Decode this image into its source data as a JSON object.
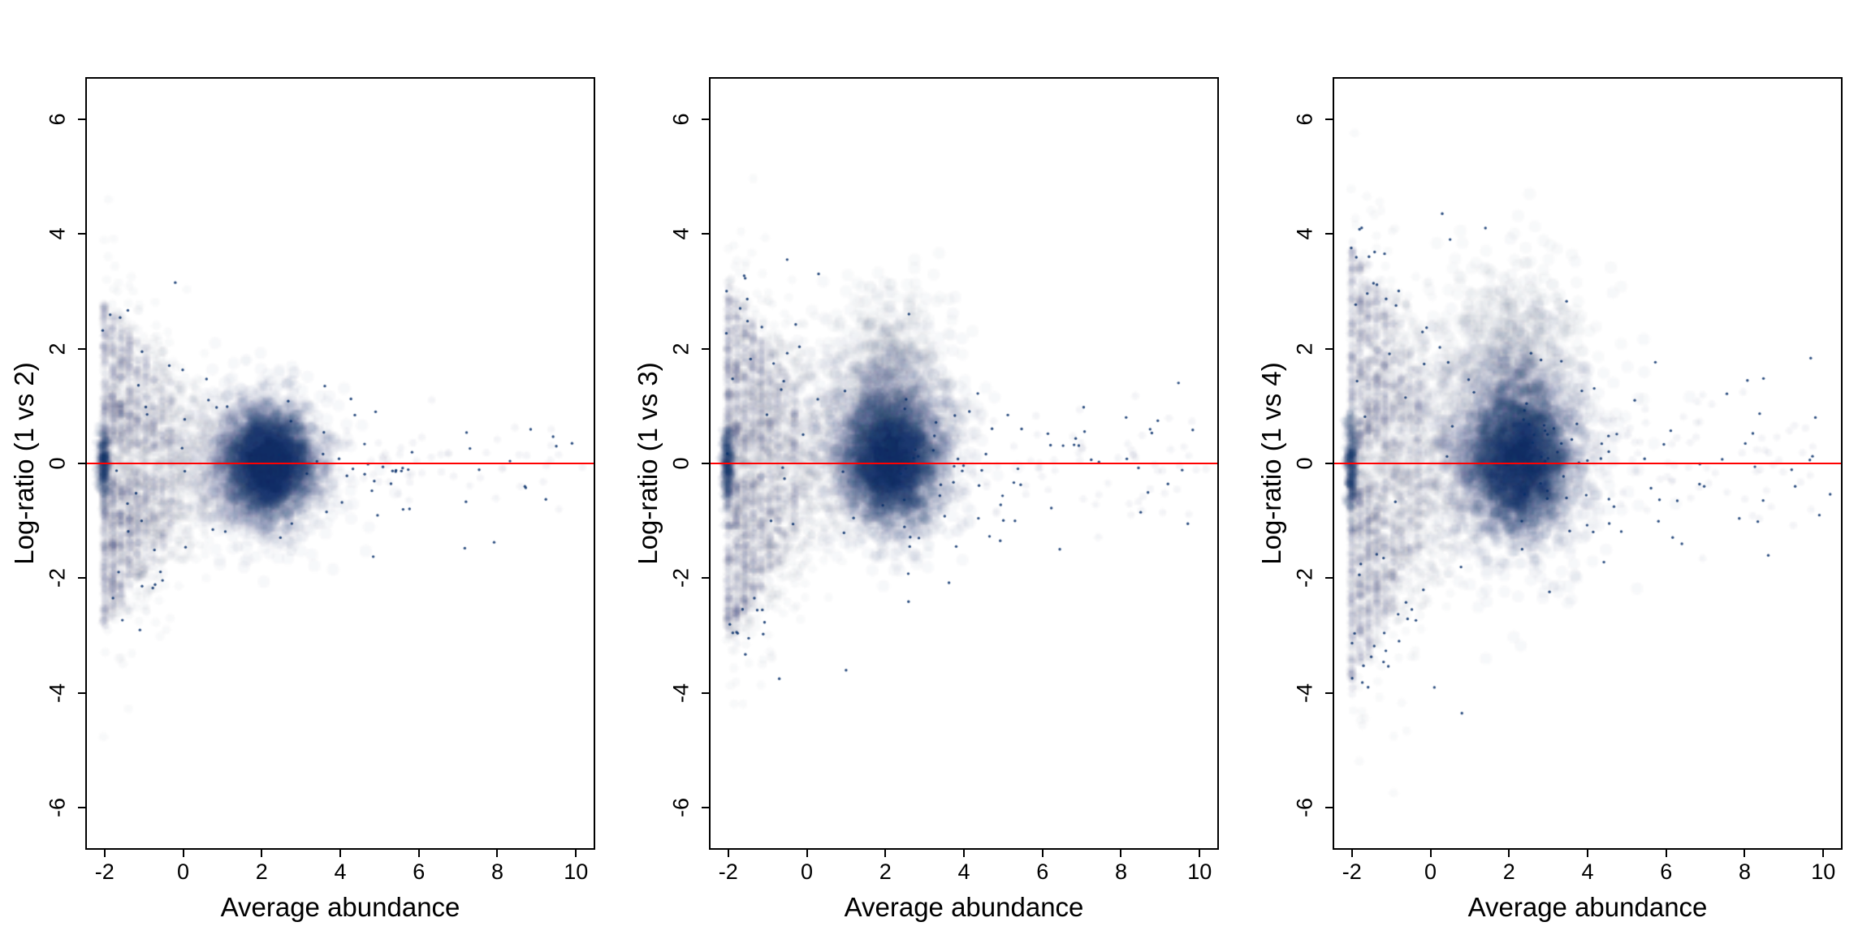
{
  "figure": {
    "background": "#ffffff",
    "description": "Three MA-plots (smoothed density scatter) comparing sample 1 against samples 2, 3 and 4"
  },
  "chart_data": [
    {
      "type": "scatter",
      "style": "smoothed-density",
      "title": "",
      "xlabel": "Average abundance",
      "ylabel": "Log-ratio (1 vs 2)",
      "xlim": [
        -2.45,
        10.45
      ],
      "ylim": [
        -6.7,
        6.7
      ],
      "x_ticks": [
        -2,
        0,
        2,
        4,
        6,
        8,
        10
      ],
      "y_ticks": [
        -6,
        -4,
        -2,
        0,
        2,
        4,
        6
      ],
      "grid": false,
      "legend": false,
      "reference_line": {
        "y": 0,
        "color": "#ff0000"
      },
      "point_color": "#08306b",
      "seed": 11,
      "components": [
        {
          "kind": "gauss",
          "x": 2.2,
          "y": 0.0,
          "sx": 0.5,
          "sy": 0.4,
          "n": 2800,
          "alpha": 0.06,
          "r": 2.4
        },
        {
          "kind": "gauss",
          "x": 2.0,
          "y": 0.0,
          "sx": 0.85,
          "sy": 0.62,
          "n": 1400,
          "alpha": 0.035,
          "r": 2.6
        },
        {
          "kind": "fan",
          "x0": -2.05,
          "reach": 4.3,
          "ymax": 2.9,
          "n": 1600,
          "alpha": 0.03,
          "r": 2.0
        },
        {
          "kind": "stripes",
          "x0": -2.0,
          "cols": 9,
          "dx": 0.21,
          "dy": 0.52,
          "levels": 5,
          "ymax": 2.9,
          "n": 1000,
          "alpha": 0.05,
          "r": 1.7
        },
        {
          "kind": "gauss",
          "x": -2.02,
          "y": 0.0,
          "sx": 0.07,
          "sy": 0.28,
          "n": 240,
          "alpha": 0.08,
          "r": 1.7
        },
        {
          "kind": "tail",
          "xmin": 3.0,
          "xmax": 10.2,
          "ysd": 0.38,
          "n": 60,
          "alpha": 0.05,
          "r": 1.6
        }
      ],
      "outliers": {
        "n": 80,
        "edge_ymax": 3.0,
        "mid_sd": 0.9,
        "tail_ymax": 0.9,
        "xmax": 10.2,
        "extra": [
          [
            9.9,
            0.35
          ],
          [
            9.5,
            0.3
          ],
          [
            8.7,
            -0.4
          ],
          [
            4.9,
            0.9
          ],
          [
            5.6,
            -0.8
          ],
          [
            -0.2,
            3.15
          ],
          [
            -1.1,
            -2.9
          ]
        ]
      }
    },
    {
      "type": "scatter",
      "style": "smoothed-density",
      "title": "",
      "xlabel": "Average abundance",
      "ylabel": "Log-ratio (1 vs 3)",
      "xlim": [
        -2.45,
        10.45
      ],
      "ylim": [
        -6.7,
        6.7
      ],
      "x_ticks": [
        -2,
        0,
        2,
        4,
        6,
        8,
        10
      ],
      "y_ticks": [
        -6,
        -4,
        -2,
        0,
        2,
        4,
        6
      ],
      "grid": false,
      "legend": false,
      "reference_line": {
        "y": 0,
        "color": "#ff0000"
      },
      "point_color": "#08306b",
      "seed": 22,
      "components": [
        {
          "kind": "gauss",
          "x": 2.15,
          "y": 0.05,
          "sx": 0.55,
          "sy": 0.5,
          "n": 2800,
          "alpha": 0.06,
          "r": 2.4
        },
        {
          "kind": "gauss",
          "x": 2.05,
          "y": 0.35,
          "sx": 0.95,
          "sy": 0.85,
          "n": 1500,
          "alpha": 0.035,
          "r": 2.6
        },
        {
          "kind": "gauss",
          "x": 2.1,
          "y": 1.5,
          "sx": 0.75,
          "sy": 0.75,
          "n": 600,
          "alpha": 0.03,
          "r": 2.6
        },
        {
          "kind": "fan",
          "x0": -2.05,
          "reach": 4.3,
          "ymax": 3.3,
          "n": 1700,
          "alpha": 0.03,
          "r": 2.0
        },
        {
          "kind": "stripes",
          "x0": -2.0,
          "cols": 9,
          "dx": 0.21,
          "dy": 0.55,
          "levels": 5,
          "ymax": 3.2,
          "n": 1000,
          "alpha": 0.05,
          "r": 1.7
        },
        {
          "kind": "gauss",
          "x": -2.02,
          "y": 0.0,
          "sx": 0.07,
          "sy": 0.35,
          "n": 260,
          "alpha": 0.08,
          "r": 1.7
        },
        {
          "kind": "tail",
          "xmin": 3.0,
          "xmax": 10.2,
          "ysd": 0.5,
          "n": 70,
          "alpha": 0.05,
          "r": 1.6
        }
      ],
      "outliers": {
        "n": 110,
        "edge_ymax": 3.6,
        "mid_sd": 1.0,
        "tail_ymax": 1.1,
        "xmax": 10.2,
        "extra": [
          [
            -0.5,
            3.55
          ],
          [
            0.3,
            3.3
          ],
          [
            1.0,
            -3.6
          ],
          [
            -0.7,
            -3.75
          ],
          [
            9.7,
            -1.05
          ],
          [
            8.5,
            -0.85
          ],
          [
            5.3,
            -1.0
          ],
          [
            2.6,
            2.6
          ]
        ]
      }
    },
    {
      "type": "scatter",
      "style": "smoothed-density",
      "title": "",
      "xlabel": "Average abundance",
      "ylabel": "Log-ratio (1 vs 4)",
      "xlim": [
        -2.45,
        10.45
      ],
      "ylim": [
        -6.7,
        6.7
      ],
      "x_ticks": [
        -2,
        0,
        2,
        4,
        6,
        8,
        10
      ],
      "y_ticks": [
        -6,
        -4,
        -2,
        0,
        2,
        4,
        6
      ],
      "grid": false,
      "legend": false,
      "reference_line": {
        "y": 0,
        "color": "#ff0000"
      },
      "point_color": "#08306b",
      "seed": 33,
      "components": [
        {
          "kind": "gauss",
          "x": 2.25,
          "y": 0.05,
          "sx": 0.6,
          "sy": 0.55,
          "n": 2900,
          "alpha": 0.06,
          "r": 2.4
        },
        {
          "kind": "gauss",
          "x": 2.1,
          "y": 0.3,
          "sx": 1.1,
          "sy": 1.0,
          "n": 1700,
          "alpha": 0.035,
          "r": 2.6
        },
        {
          "kind": "gauss",
          "x": 2.05,
          "y": 1.8,
          "sx": 0.9,
          "sy": 0.9,
          "n": 700,
          "alpha": 0.03,
          "r": 2.6
        },
        {
          "kind": "fan",
          "x0": -2.05,
          "reach": 4.5,
          "ymax": 3.8,
          "n": 1800,
          "alpha": 0.03,
          "r": 2.0
        },
        {
          "kind": "stripes",
          "x0": -2.0,
          "cols": 9,
          "dx": 0.21,
          "dy": 0.6,
          "levels": 6,
          "ymax": 3.6,
          "n": 1100,
          "alpha": 0.05,
          "r": 1.7
        },
        {
          "kind": "gauss",
          "x": -2.02,
          "y": 0.0,
          "sx": 0.07,
          "sy": 0.4,
          "n": 280,
          "alpha": 0.08,
          "r": 1.7
        },
        {
          "kind": "tail",
          "xmin": 3.0,
          "xmax": 10.2,
          "ysd": 0.6,
          "n": 80,
          "alpha": 0.05,
          "r": 1.6
        }
      ],
      "outliers": {
        "n": 130,
        "edge_ymax": 4.2,
        "mid_sd": 1.2,
        "tail_ymax": 1.4,
        "xmax": 10.2,
        "extra": [
          [
            0.3,
            4.35
          ],
          [
            1.4,
            4.1
          ],
          [
            0.5,
            3.9
          ],
          [
            0.8,
            -4.35
          ],
          [
            0.1,
            -3.9
          ],
          [
            9.8,
            0.8
          ],
          [
            9.9,
            -0.9
          ],
          [
            8.6,
            -1.6
          ],
          [
            6.4,
            -1.4
          ],
          [
            5.2,
            1.1
          ]
        ]
      }
    }
  ]
}
